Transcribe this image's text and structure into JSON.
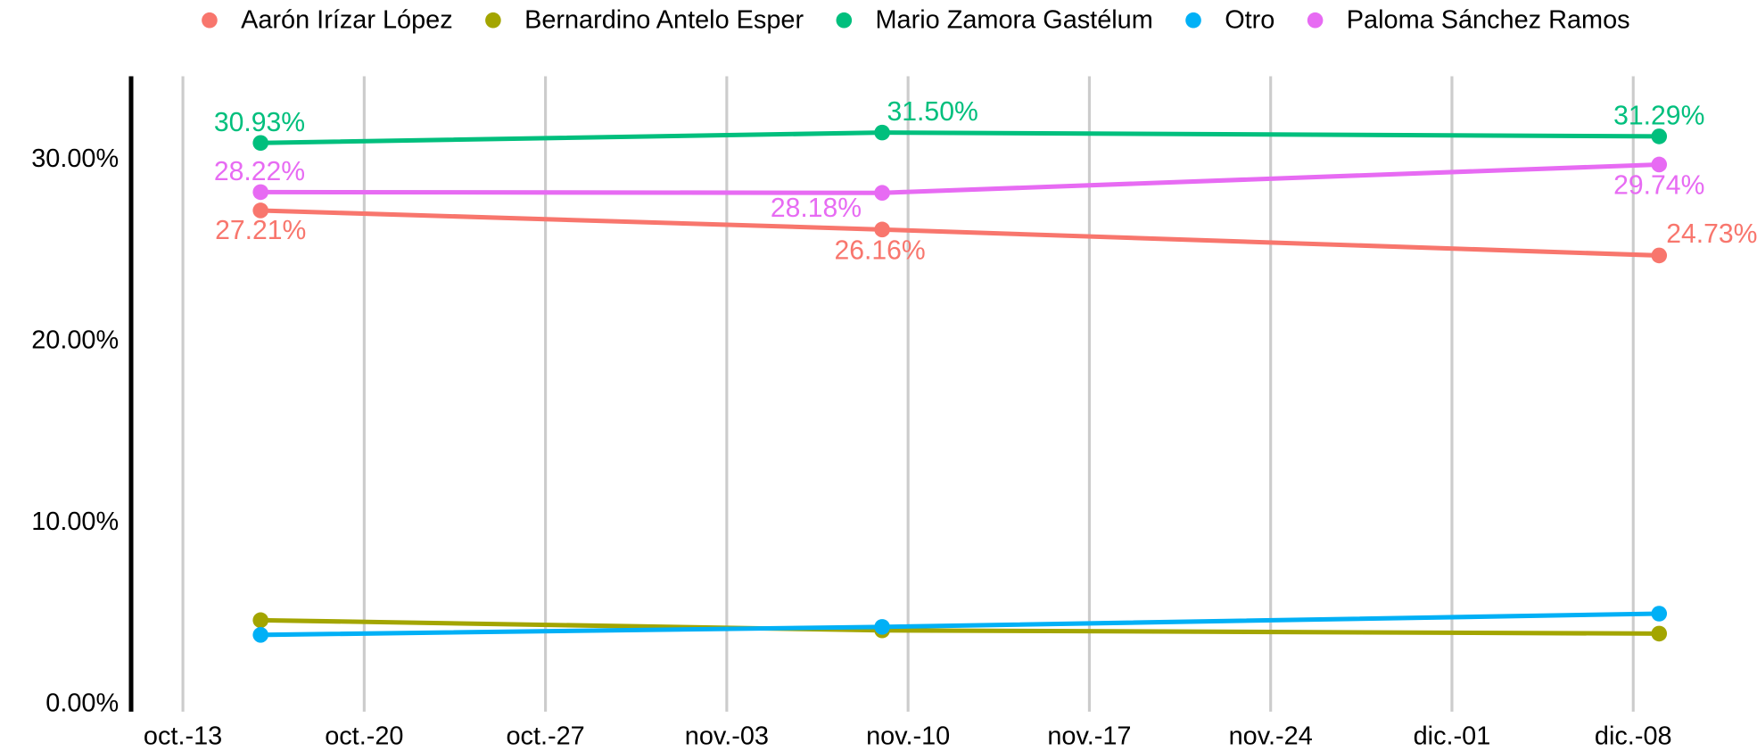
{
  "chart_data": {
    "type": "line",
    "x": [
      "oct.-16",
      "nov.-09",
      "dic.-09"
    ],
    "xlim": [
      "oct.-11",
      "dic.-12"
    ],
    "xticks": [
      "oct.-13",
      "oct.-20",
      "oct.-27",
      "nov.-03",
      "nov.-10",
      "nov.-17",
      "nov.-24",
      "dic.-01",
      "dic.-08"
    ],
    "ylim": [
      -0.4,
      34.6
    ],
    "yticks": [
      {
        "value": 0,
        "label": "0.00%"
      },
      {
        "value": 10,
        "label": "10.00%"
      },
      {
        "value": 20,
        "label": "20.00%"
      },
      {
        "value": 30,
        "label": "30.00%"
      }
    ],
    "grid": "x",
    "legend": "top",
    "series": [
      {
        "name": "Aarón Irízar López",
        "color": "#F8766D",
        "values": [
          27.21,
          26.16,
          24.73
        ],
        "value_labels": [
          "27.21%",
          "26.16%",
          "24.73%"
        ]
      },
      {
        "name": "Bernardino Antelo Esper",
        "color": "#A3A500",
        "values": [
          4.64,
          4.08,
          3.9
        ]
      },
      {
        "name": "Mario Zamora Gastélum",
        "color": "#00BF7D",
        "values": [
          30.93,
          31.5,
          31.29
        ],
        "value_labels": [
          "30.93%",
          "31.50%",
          "31.29%"
        ]
      },
      {
        "name": "Otro",
        "color": "#00B0F6",
        "values": [
          3.83,
          4.27,
          5.0
        ]
      },
      {
        "name": "Paloma Sánchez Ramos",
        "color": "#E76BF3",
        "values": [
          28.22,
          28.18,
          29.74
        ],
        "value_labels": [
          "28.22%",
          "28.18%",
          "29.74%"
        ]
      }
    ]
  }
}
